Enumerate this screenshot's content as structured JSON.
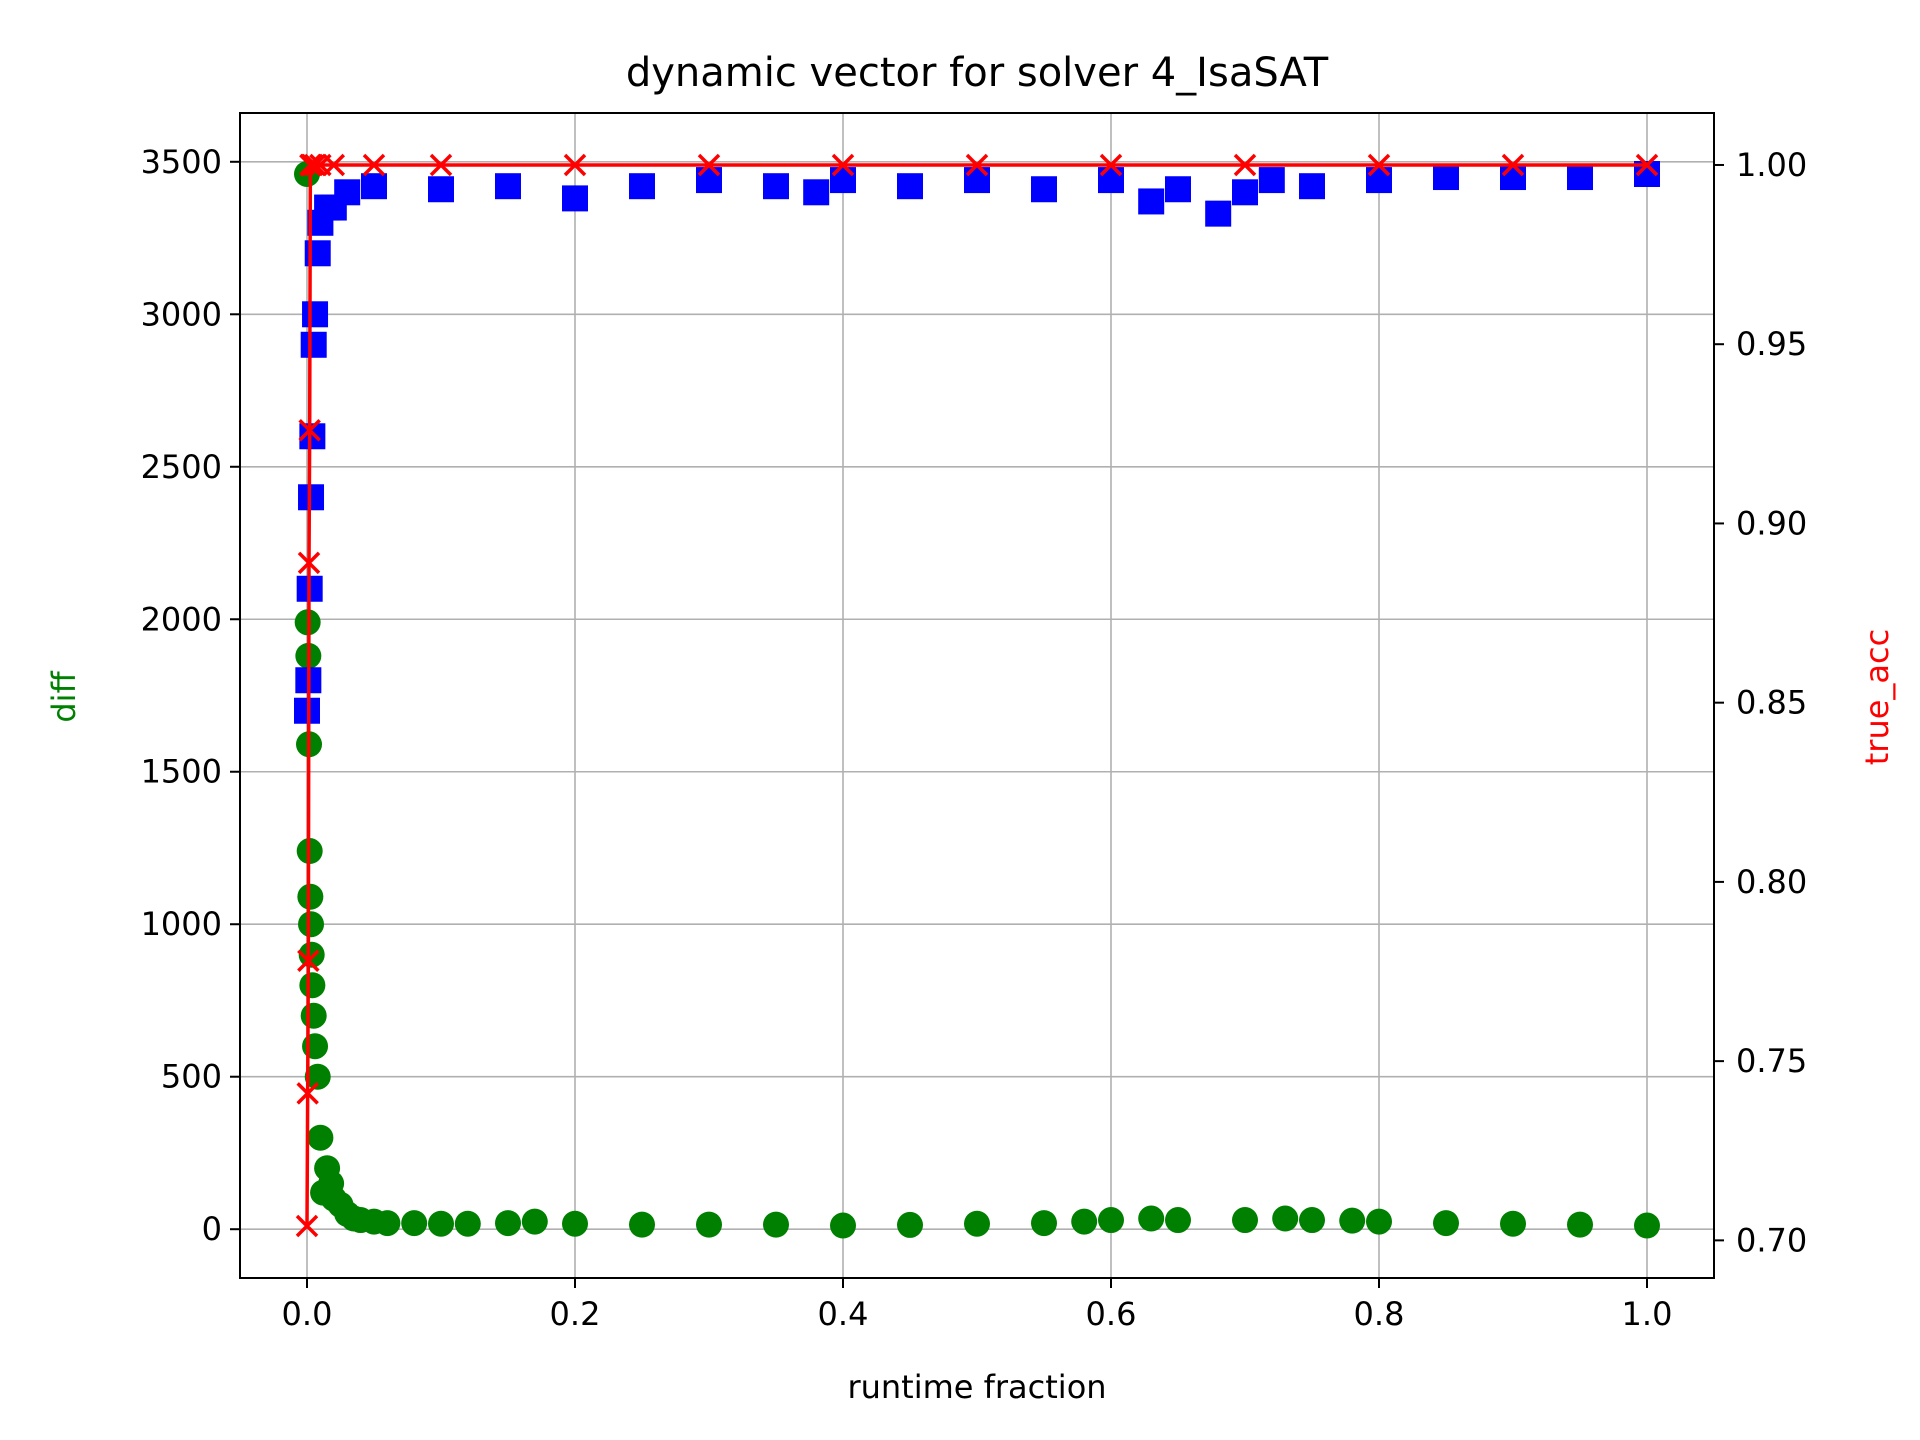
{
  "chart_data": {
    "type": "scatter",
    "title": "dynamic vector for solver 4_IsaSAT",
    "xlabel": "runtime fraction",
    "ylabel": "diff",
    "y2label": "true_acc",
    "xlim": [
      -0.05,
      1.05
    ],
    "ylim": [
      -160,
      3660
    ],
    "y2lim": [
      0.6895,
      1.0145
    ],
    "xticks": [
      "0.0",
      "0.2",
      "0.4",
      "0.6",
      "0.8",
      "1.0"
    ],
    "yticks": [
      "0",
      "500",
      "1000",
      "1500",
      "2000",
      "2500",
      "3000",
      "3500"
    ],
    "y2ticks": [
      "0.70",
      "0.75",
      "0.80",
      "0.85",
      "0.90",
      "0.95",
      "1.00"
    ],
    "grid": true,
    "colors": {
      "diff": "#008000",
      "blue_series": "#0000ff",
      "true_acc": "#ff0000",
      "axis_label_left": "#008000",
      "axis_label_right": "#ff0000"
    },
    "series": [
      {
        "marker": "circle",
        "axis": "left",
        "color": "#008000",
        "x": [
          0.0,
          0.0005,
          0.001,
          0.0015,
          0.002,
          0.0025,
          0.003,
          0.0035,
          0.004,
          0.005,
          0.006,
          0.008,
          0.01,
          0.012,
          0.015,
          0.018,
          0.02,
          0.025,
          0.03,
          0.035,
          0.04,
          0.05,
          0.06,
          0.08,
          0.1,
          0.12,
          0.15,
          0.17,
          0.2,
          0.25,
          0.3,
          0.35,
          0.4,
          0.45,
          0.5,
          0.55,
          0.58,
          0.6,
          0.63,
          0.65,
          0.7,
          0.73,
          0.75,
          0.78,
          0.8,
          0.85,
          0.9,
          0.95,
          1.0
        ],
        "y": [
          3460,
          1990,
          1880,
          1590,
          1240,
          1090,
          1000,
          900,
          800,
          700,
          600,
          500,
          300,
          120,
          200,
          150,
          100,
          80,
          50,
          35,
          30,
          25,
          20,
          20,
          18,
          18,
          20,
          25,
          18,
          15,
          15,
          15,
          12,
          14,
          18,
          20,
          25,
          30,
          35,
          30,
          30,
          35,
          30,
          28,
          25,
          20,
          18,
          15,
          12
        ]
      },
      {
        "marker": "square",
        "axis": "left",
        "color": "#0000ff",
        "x": [
          0.0,
          0.001,
          0.002,
          0.003,
          0.004,
          0.005,
          0.006,
          0.008,
          0.01,
          0.015,
          0.02,
          0.03,
          0.05,
          0.1,
          0.15,
          0.2,
          0.25,
          0.3,
          0.35,
          0.38,
          0.4,
          0.45,
          0.5,
          0.55,
          0.6,
          0.63,
          0.65,
          0.68,
          0.7,
          0.72,
          0.75,
          0.8,
          0.85,
          0.9,
          0.95,
          1.0
        ],
        "y": [
          1700,
          1800,
          2100,
          2400,
          2600,
          2900,
          3000,
          3200,
          3300,
          3350,
          3350,
          3400,
          3420,
          3410,
          3420,
          3380,
          3420,
          3440,
          3420,
          3400,
          3440,
          3420,
          3440,
          3410,
          3440,
          3370,
          3410,
          3330,
          3400,
          3440,
          3420,
          3440,
          3450,
          3450,
          3450,
          3460
        ]
      },
      {
        "marker": "x",
        "axis": "right",
        "color": "#ff0000",
        "connected": true,
        "x": [
          0.0,
          0.0005,
          0.001,
          0.0015,
          0.002,
          0.0025,
          0.003,
          0.004,
          0.006,
          0.01,
          0.02,
          0.05,
          0.1,
          0.2,
          0.3,
          0.4,
          0.5,
          0.6,
          0.7,
          0.8,
          0.9,
          1.0
        ],
        "y": [
          0.704,
          0.741,
          0.778,
          0.889,
          0.926,
          1.0,
          1.0,
          1.0,
          1.0,
          1.0,
          1.0,
          1.0,
          1.0,
          1.0,
          1.0,
          1.0,
          1.0,
          1.0,
          1.0,
          1.0,
          1.0,
          1.0
        ]
      }
    ]
  }
}
